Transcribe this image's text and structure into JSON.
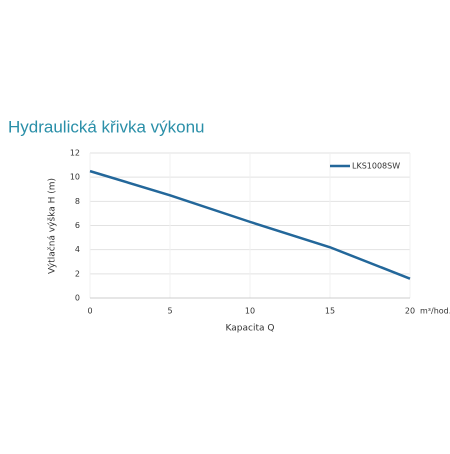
{
  "chart_data": {
    "type": "line",
    "title": "Hydraulická křivka výkonu",
    "x_label": "Kapacita Q",
    "x_unit": "m³/hod.",
    "y_label": "Výtlačná výška H (m)",
    "x": [
      0,
      5,
      10,
      15,
      20
    ],
    "series": [
      {
        "name": "LKS1008SW",
        "color": "#23679a",
        "values": [
          10.5,
          8.5,
          6.3,
          4.2,
          1.6
        ]
      }
    ],
    "xlim": [
      0,
      20
    ],
    "xticks": [
      0,
      5,
      10,
      15,
      20
    ],
    "ylim": [
      0,
      12
    ],
    "yticks": [
      0,
      2,
      4,
      6,
      8,
      10,
      12
    ],
    "grid": true,
    "legend": "top-right"
  }
}
